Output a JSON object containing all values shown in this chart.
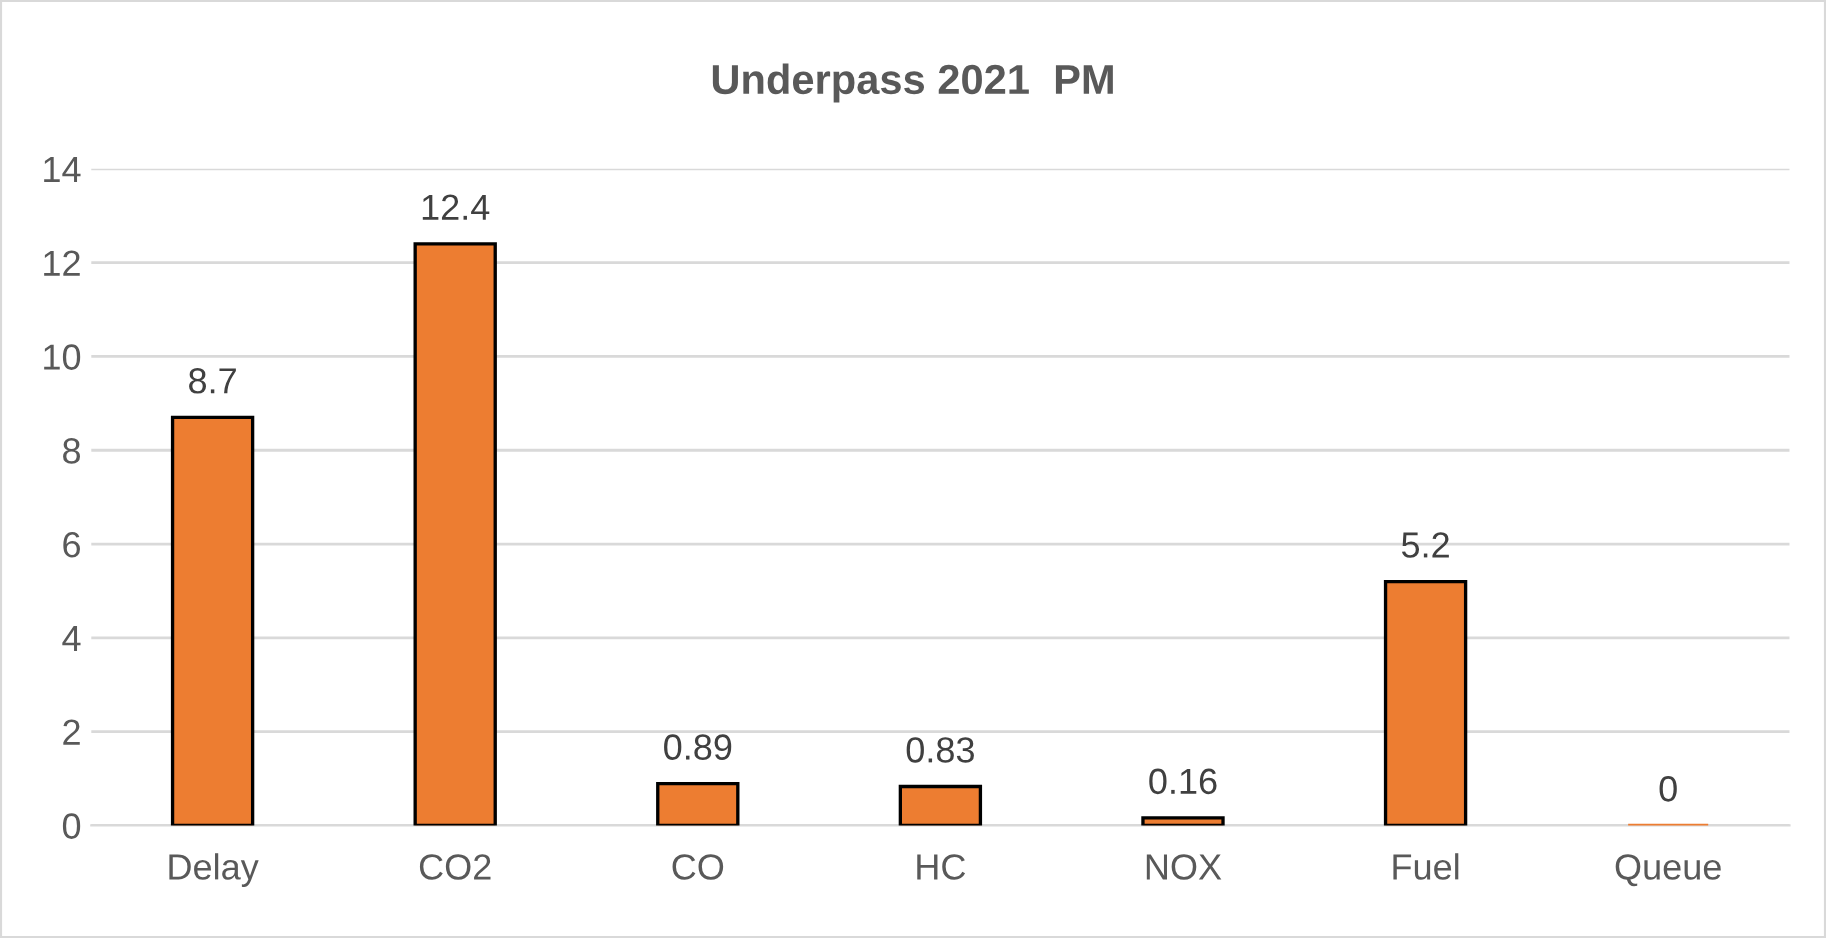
{
  "chart_data": {
    "type": "bar",
    "title": "Underpass 2021  PM",
    "categories": [
      "Delay",
      "CO2",
      "CO",
      "HC",
      "NOX",
      "Fuel",
      "Queue"
    ],
    "values": [
      8.7,
      12.4,
      0.89,
      0.83,
      0.16,
      5.2,
      0
    ],
    "color": "#ed7d31",
    "ylim": [
      0,
      14
    ],
    "yticks": [
      0,
      2,
      4,
      6,
      8,
      10,
      12,
      14
    ],
    "grid": "y",
    "data_labels": true
  }
}
